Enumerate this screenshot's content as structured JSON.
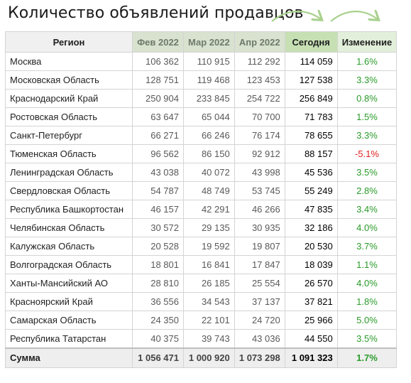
{
  "title": "Количество объявлений продавцов",
  "colors": {
    "header_region": "#f0f0f0",
    "header_month": "#d8e2cf",
    "header_today": "#c6e0b4",
    "header_change": "#e2efda",
    "positive": "#2a9b2a",
    "negative": "#e02020",
    "arrow": "#a9d18e"
  },
  "headers": {
    "region": "Регион",
    "feb": "Фев 2022",
    "mar": "Мар 2022",
    "apr": "Апр 2022",
    "today": "Сегодня",
    "change": "Изменение"
  },
  "rows": [
    {
      "region": "Москва",
      "feb": "106 362",
      "mar": "110 915",
      "apr": "112 292",
      "today": "114 059",
      "change": "1.6%",
      "sign": "pos"
    },
    {
      "region": "Московская Область",
      "feb": "128 751",
      "mar": "119 468",
      "apr": "123 453",
      "today": "127 538",
      "change": "3.3%",
      "sign": "pos"
    },
    {
      "region": "Краснодарский Край",
      "feb": "250 904",
      "mar": "233 845",
      "apr": "254 722",
      "today": "256 849",
      "change": "0.8%",
      "sign": "pos"
    },
    {
      "region": "Ростовская Область",
      "feb": "63 647",
      "mar": "65 044",
      "apr": "70 700",
      "today": "71 783",
      "change": "1.5%",
      "sign": "pos"
    },
    {
      "region": "Санкт-Петербург",
      "feb": "66 271",
      "mar": "66 246",
      "apr": "76 174",
      "today": "78 655",
      "change": "3.3%",
      "sign": "pos"
    },
    {
      "region": "Тюменская Область",
      "feb": "96 562",
      "mar": "86 150",
      "apr": "92 912",
      "today": "88 157",
      "change": "-5.1%",
      "sign": "neg"
    },
    {
      "region": "Ленинградская Область",
      "feb": "43 038",
      "mar": "40 072",
      "apr": "43 998",
      "today": "45 536",
      "change": "3.5%",
      "sign": "pos"
    },
    {
      "region": "Свердловская Область",
      "feb": "54 787",
      "mar": "48 749",
      "apr": "53 745",
      "today": "55 249",
      "change": "2.8%",
      "sign": "pos"
    },
    {
      "region": "Республика Башкортостан",
      "feb": "46 157",
      "mar": "42 291",
      "apr": "46 266",
      "today": "47 835",
      "change": "3.4%",
      "sign": "pos"
    },
    {
      "region": "Челябинская Область",
      "feb": "30 572",
      "mar": "29 135",
      "apr": "30 935",
      "today": "32 186",
      "change": "4.0%",
      "sign": "pos"
    },
    {
      "region": "Калужская Область",
      "feb": "20 528",
      "mar": "19 592",
      "apr": "19 807",
      "today": "20 530",
      "change": "3.7%",
      "sign": "pos"
    },
    {
      "region": "Волгоградская Область",
      "feb": "18 801",
      "mar": "16 841",
      "apr": "17 847",
      "today": "18 039",
      "change": "1.1%",
      "sign": "pos"
    },
    {
      "region": "Ханты-Мансийский АО",
      "feb": "28 810",
      "mar": "26 185",
      "apr": "25 554",
      "today": "26 570",
      "change": "4.0%",
      "sign": "pos"
    },
    {
      "region": "Красноярский Край",
      "feb": "36 556",
      "mar": "34 543",
      "apr": "37 137",
      "today": "37 821",
      "change": "1.8%",
      "sign": "pos"
    },
    {
      "region": "Самарская Область",
      "feb": "24 350",
      "mar": "22 101",
      "apr": "24 720",
      "today": "25 966",
      "change": "5.0%",
      "sign": "pos"
    },
    {
      "region": "Республика Татарстан",
      "feb": "40 375",
      "mar": "39 743",
      "apr": "43 036",
      "today": "44 550",
      "change": "3.5%",
      "sign": "pos"
    }
  ],
  "total": {
    "region": "Сумма",
    "feb": "1 056 471",
    "mar": "1 000 920",
    "apr": "1 073 298",
    "today": "1 091 323",
    "change": "1.7%",
    "sign": "pos"
  }
}
